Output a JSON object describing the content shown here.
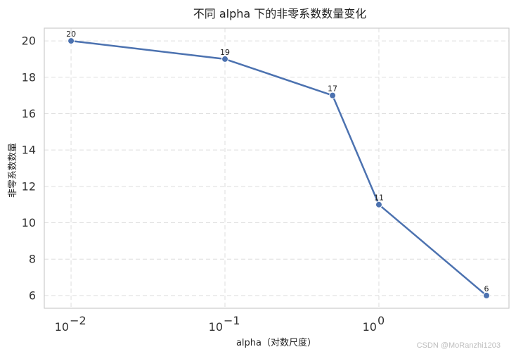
{
  "chart_data": {
    "type": "line",
    "title": "不同 alpha 下的非零系数数量变化",
    "xlabel": "alpha（对数尺度）",
    "ylabel": "非零系数数量",
    "x_scale": "log",
    "x": [
      0.01,
      0.1,
      0.5,
      1,
      5
    ],
    "y": [
      20,
      19,
      17,
      11,
      6
    ],
    "data_labels": [
      "20",
      "19",
      "17",
      "11",
      "6"
    ],
    "x_ticks": [
      {
        "value": 0.01,
        "base": "10",
        "exp": "−2"
      },
      {
        "value": 0.1,
        "base": "10",
        "exp": "−1"
      },
      {
        "value": 1,
        "base": "10",
        "exp": "0"
      }
    ],
    "y_ticks": [
      "6",
      "8",
      "10",
      "12",
      "14",
      "16",
      "18",
      "20"
    ],
    "ylim": [
      5.3,
      20.7
    ],
    "xlim": [
      0.0067,
      7.0
    ],
    "grid": true,
    "line_color": "#4c72b0",
    "grid_color": "#dddddd"
  },
  "watermark": "CSDN @MoRanzhi1203"
}
